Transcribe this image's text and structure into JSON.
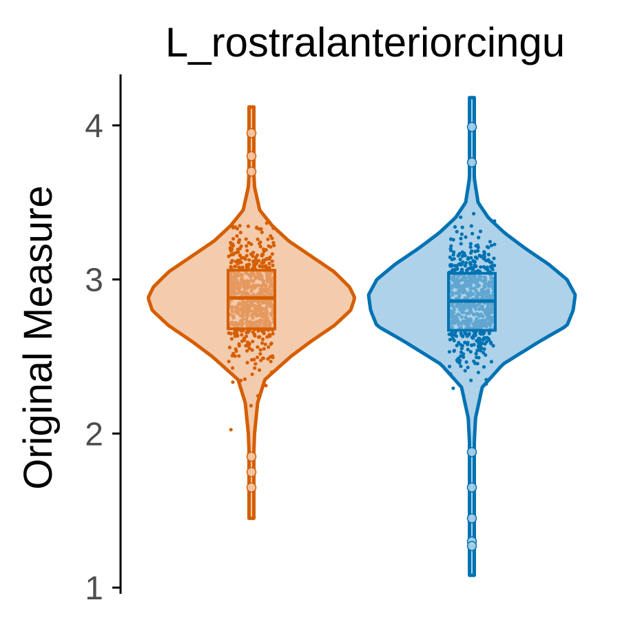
{
  "chart_data": {
    "type": "violin",
    "title": "L_rostralanteriorcingu",
    "xlabel": "",
    "ylabel": "Original Measure",
    "ylim": [
      1,
      4.3
    ],
    "yticks": [
      1,
      2,
      3,
      4
    ],
    "ytick_labels": [
      "1",
      "2",
      "3",
      "4"
    ],
    "grid": false,
    "legend": "none",
    "series": [
      {
        "color": "#d55e00",
        "fill": "#f3cbad",
        "min": 1.45,
        "max": 4.12,
        "q1": 2.68,
        "median": 2.88,
        "q3": 3.06,
        "density": [
          [
            1.45,
            0.006
          ],
          [
            1.6,
            0.012
          ],
          [
            1.8,
            0.018
          ],
          [
            2.0,
            0.03
          ],
          [
            2.2,
            0.06
          ],
          [
            2.35,
            0.13
          ],
          [
            2.5,
            0.38
          ],
          [
            2.6,
            0.58
          ],
          [
            2.7,
            0.8
          ],
          [
            2.8,
            0.96
          ],
          [
            2.88,
            1.0
          ],
          [
            2.95,
            0.95
          ],
          [
            3.05,
            0.8
          ],
          [
            3.15,
            0.58
          ],
          [
            3.25,
            0.36
          ],
          [
            3.35,
            0.2
          ],
          [
            3.45,
            0.08
          ],
          [
            3.6,
            0.03
          ],
          [
            3.8,
            0.014
          ],
          [
            4.0,
            0.008
          ],
          [
            4.12,
            0.004
          ]
        ],
        "outliers": [
          3.95,
          3.8,
          3.7,
          1.85,
          1.75,
          1.65
        ]
      },
      {
        "color": "#0072b2",
        "fill": "#aed2ea",
        "min": 1.08,
        "max": 4.18,
        "q1": 2.67,
        "median": 2.86,
        "q3": 3.04,
        "density": [
          [
            1.08,
            0.004
          ],
          [
            1.3,
            0.008
          ],
          [
            1.6,
            0.014
          ],
          [
            1.9,
            0.02
          ],
          [
            2.1,
            0.035
          ],
          [
            2.3,
            0.1
          ],
          [
            2.45,
            0.3
          ],
          [
            2.6,
            0.66
          ],
          [
            2.7,
            0.92
          ],
          [
            2.8,
            0.98
          ],
          [
            2.9,
            1.0
          ],
          [
            3.0,
            0.92
          ],
          [
            3.1,
            0.74
          ],
          [
            3.2,
            0.52
          ],
          [
            3.3,
            0.32
          ],
          [
            3.4,
            0.16
          ],
          [
            3.5,
            0.06
          ],
          [
            3.65,
            0.025
          ],
          [
            3.85,
            0.012
          ],
          [
            4.05,
            0.006
          ],
          [
            4.18,
            0.004
          ]
        ],
        "outliers": [
          3.99,
          3.76,
          1.88,
          1.65,
          1.45,
          1.3,
          1.27
        ]
      }
    ]
  }
}
